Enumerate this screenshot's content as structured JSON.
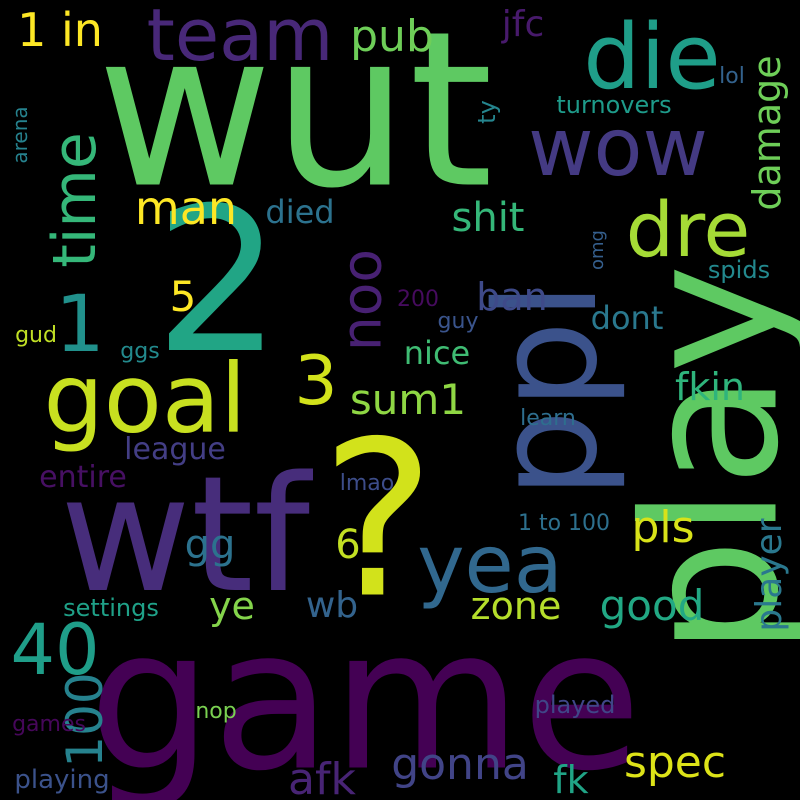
{
  "words": [
    {
      "text": "wut",
      "color": "#5ec962"
    },
    {
      "text": "game",
      "color": "#440154"
    },
    {
      "text": "?",
      "color": "#d2e21b"
    },
    {
      "text": "wtf",
      "color": "#472d7b"
    },
    {
      "text": "2",
      "color": "#21a585"
    },
    {
      "text": "play",
      "color": "#5ec962"
    },
    {
      "text": "ppl",
      "color": "#3b528b"
    },
    {
      "text": "goal",
      "color": "#c8e020"
    },
    {
      "text": "team",
      "color": "#482878"
    },
    {
      "text": "die",
      "color": "#1f9e89"
    },
    {
      "text": "wow",
      "color": "#443a83"
    },
    {
      "text": "dre",
      "color": "#a5db36"
    },
    {
      "text": "time",
      "color": "#35b779"
    },
    {
      "text": "yea",
      "color": "#31688e"
    },
    {
      "text": "noo",
      "color": "#482173"
    },
    {
      "text": "40",
      "color": "#1f9e89"
    },
    {
      "text": "100",
      "color": "#26828e"
    },
    {
      "text": "1",
      "color": "#21918c"
    },
    {
      "text": "3",
      "color": "#d2e21b"
    },
    {
      "text": "1 in",
      "color": "#fde725"
    },
    {
      "text": "pub",
      "color": "#6ece58"
    },
    {
      "text": "jfc",
      "color": "#481a6c"
    },
    {
      "text": "damage",
      "color": "#6ece58"
    },
    {
      "text": "man",
      "color": "#fde725"
    },
    {
      "text": "shit",
      "color": "#35b779"
    },
    {
      "text": "died",
      "color": "#2c728e"
    },
    {
      "text": "ban",
      "color": "#3e4a89"
    },
    {
      "text": "5",
      "color": "#fde725"
    },
    {
      "text": "sum1",
      "color": "#8fd744"
    },
    {
      "text": "nice",
      "color": "#3fbc73"
    },
    {
      "text": "dont",
      "color": "#2a788e"
    },
    {
      "text": "fkin",
      "color": "#2fb47c"
    },
    {
      "text": "league",
      "color": "#433e85"
    },
    {
      "text": "entire",
      "color": "#471063"
    },
    {
      "text": "6",
      "color": "#c2df23"
    },
    {
      "text": "gg",
      "color": "#2c728e"
    },
    {
      "text": "pls",
      "color": "#d8e219"
    },
    {
      "text": "player",
      "color": "#2a788e"
    },
    {
      "text": "ye",
      "color": "#84d44b"
    },
    {
      "text": "wb",
      "color": "#33638d"
    },
    {
      "text": "zone",
      "color": "#b5de2b"
    },
    {
      "text": "good",
      "color": "#22a884"
    },
    {
      "text": "afk",
      "color": "#482475"
    },
    {
      "text": "gonna",
      "color": "#414487"
    },
    {
      "text": "fk",
      "color": "#20a486"
    },
    {
      "text": "spec",
      "color": "#dde318"
    },
    {
      "text": "played",
      "color": "#404688"
    },
    {
      "text": "games",
      "color": "#46075a"
    },
    {
      "text": "playing",
      "color": "#3b528b"
    },
    {
      "text": "nop",
      "color": "#7ad151"
    },
    {
      "text": "settings",
      "color": "#1fa188"
    },
    {
      "text": "1 to 100",
      "color": "#2d708e"
    },
    {
      "text": "lmao",
      "color": "#3d4d8a"
    },
    {
      "text": "learn",
      "color": "#2e6e8e"
    },
    {
      "text": "guy",
      "color": "#3a548c"
    },
    {
      "text": "200",
      "color": "#460b5e"
    },
    {
      "text": "omg",
      "color": "#355f8d"
    },
    {
      "text": "spids",
      "color": "#23898e"
    },
    {
      "text": "ty",
      "color": "#25858e"
    },
    {
      "text": "turnovers",
      "color": "#1e9b8a"
    },
    {
      "text": "lol",
      "color": "#33628d"
    },
    {
      "text": "arena",
      "color": "#26828e"
    },
    {
      "text": "gud",
      "color": "#c0df25"
    },
    {
      "text": "ggs",
      "color": "#238a8d"
    }
  ]
}
